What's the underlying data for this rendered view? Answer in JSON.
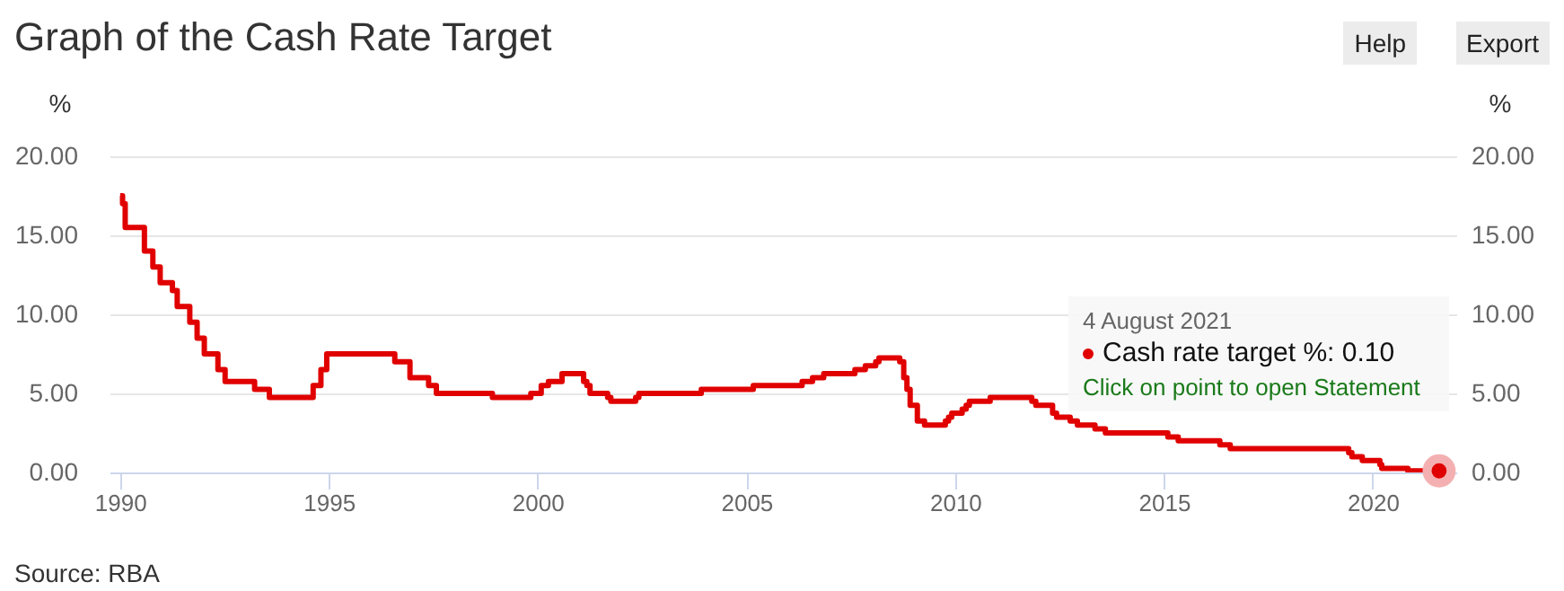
{
  "chart_data": {
    "type": "step",
    "title": "Graph of the Cash Rate Target",
    "ylabel": "%",
    "y2label": "%",
    "annotations": [
      "4 August 2021",
      "Cash rate target %: 0.10",
      "Click on point to open Statement",
      "Source: RBA",
      "Help",
      "Export"
    ],
    "x": [
      "1990-01-02",
      "1990-01-23",
      "1990-02-15",
      "1990-08-02",
      "1990-10-15",
      "1990-12-18",
      "1991-04-04",
      "1991-05-16",
      "1991-09-03",
      "1991-11-06",
      "1992-01-08",
      "1992-05-06",
      "1992-07-08",
      "1993-03-23",
      "1993-07-30",
      "1994-08-17",
      "1994-10-24",
      "1994-12-14",
      "1996-07-31",
      "1996-12-11",
      "1997-05-23",
      "1997-07-30",
      "1998-12-02",
      "1999-11-03",
      "2000-02-02",
      "2000-04-05",
      "2000-08-02",
      "2001-02-07",
      "2001-03-07",
      "2001-04-04",
      "2001-09-05",
      "2001-10-03",
      "2002-05-08",
      "2002-06-05",
      "2003-11-05",
      "2003-12-03",
      "2005-03-02",
      "2006-05-03",
      "2006-08-02",
      "2006-11-08",
      "2007-08-08",
      "2007-11-07",
      "2008-02-06",
      "2008-03-05",
      "2008-09-03",
      "2008-10-08",
      "2008-11-05",
      "2008-12-03",
      "2009-02-04",
      "2009-04-08",
      "2009-10-07",
      "2009-11-04",
      "2009-12-02",
      "2010-03-03",
      "2010-04-07",
      "2010-05-05",
      "2010-11-03",
      "2011-11-02",
      "2011-12-07",
      "2012-05-02",
      "2012-06-06",
      "2012-10-03",
      "2012-12-05",
      "2013-05-08",
      "2013-08-07",
      "2015-02-04",
      "2015-05-06",
      "2016-05-04",
      "2016-08-03",
      "2019-06-05",
      "2019-07-03",
      "2019-10-02",
      "2020-03-04",
      "2020-03-20",
      "2020-11-04",
      "2021-08-04"
    ],
    "series": [
      {
        "type": "scatter",
        "marker": "circle",
        "color": "#e00000",
        "x": [
          "2021-08-04"
        ],
        "values": [
          0.1
        ]
      },
      {
        "color": "#e00000",
        "values": [
          17.5,
          17.0,
          15.5,
          14.0,
          13.0,
          12.0,
          11.5,
          10.5,
          9.5,
          8.5,
          7.5,
          6.5,
          5.75,
          5.25,
          4.75,
          5.5,
          6.5,
          7.5,
          7.0,
          6.0,
          5.5,
          5.0,
          4.75,
          5.0,
          5.5,
          5.75,
          6.25,
          5.75,
          5.5,
          5.0,
          4.75,
          4.5,
          4.75,
          5.0,
          5.0,
          5.25,
          5.5,
          5.75,
          6.0,
          6.25,
          6.5,
          6.75,
          7.0,
          7.25,
          7.0,
          6.0,
          5.25,
          4.25,
          3.25,
          3.0,
          3.25,
          3.5,
          3.75,
          4.0,
          4.25,
          4.5,
          4.75,
          4.5,
          4.25,
          3.75,
          3.5,
          3.25,
          3.0,
          2.75,
          2.5,
          2.25,
          2.0,
          1.75,
          1.5,
          1.25,
          1.0,
          0.75,
          0.5,
          0.25,
          0.1,
          0.1
        ]
      }
    ],
    "xlim": [
      "1989-10-01",
      "2022-01-01"
    ],
    "xticks": [
      "1990",
      "1995",
      "2000",
      "2005",
      "2010",
      "2015",
      "2020"
    ],
    "ylim": [
      0,
      20
    ],
    "yticks": [
      {
        "value": 0,
        "label": "0.00"
      },
      {
        "value": 5,
        "label": "5.00"
      },
      {
        "value": 10,
        "label": "10.00"
      },
      {
        "value": 15,
        "label": "15.00"
      },
      {
        "value": 20,
        "label": "20.00"
      }
    ],
    "y2lim": [
      0,
      20
    ],
    "y2ticks": [
      {
        "value": 0,
        "label": "0.00"
      },
      {
        "value": 5,
        "label": "5.00"
      },
      {
        "value": 10,
        "label": "10.00"
      },
      {
        "value": 15,
        "label": "15.00"
      },
      {
        "value": 20,
        "label": "20.00"
      }
    ],
    "grid": "y"
  }
}
